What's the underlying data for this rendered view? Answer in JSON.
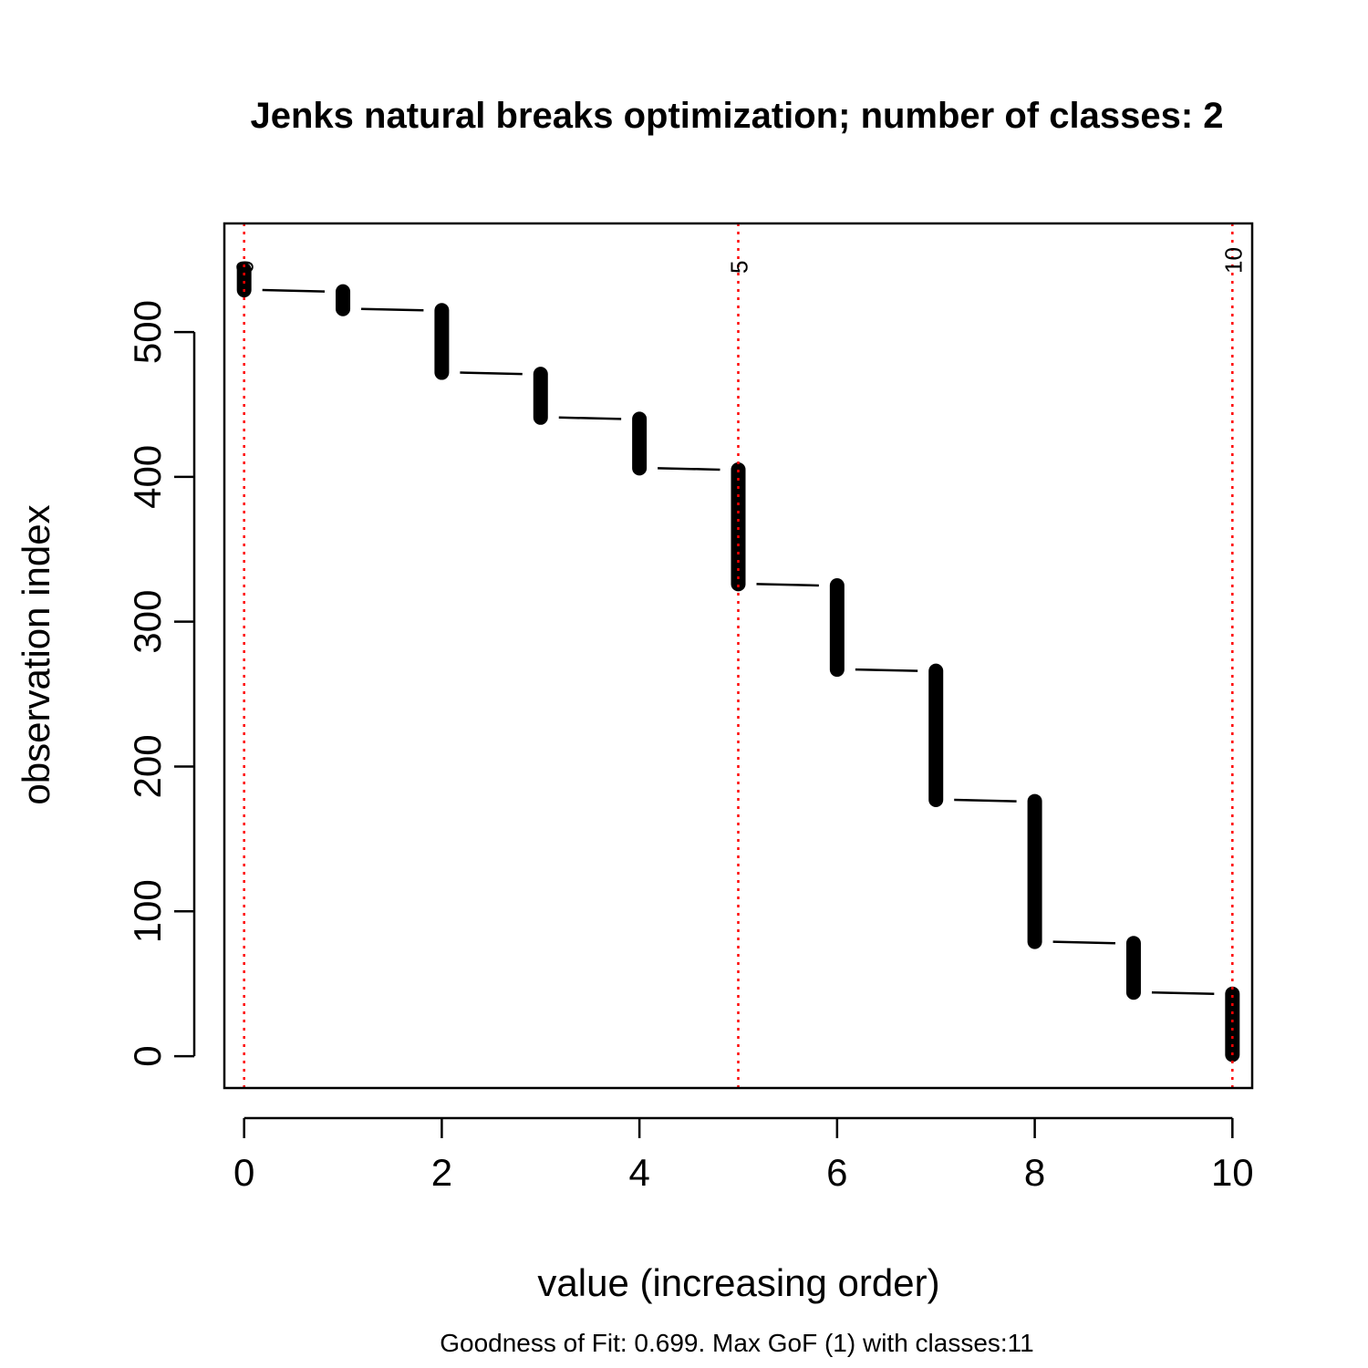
{
  "chart_data": {
    "type": "scatter",
    "title": "Jenks natural breaks optimization; number of classes: 2",
    "xlabel": "value (increasing order)",
    "ylabel": "observation index",
    "subtitle": "Goodness of Fit: 0.699. Max GoF (1) with classes:11",
    "xlim": [
      -0.2,
      10.2
    ],
    "ylim": [
      -22,
      575
    ],
    "x_ticks": [
      0,
      2,
      4,
      6,
      8,
      10
    ],
    "y_ticks": [
      0,
      100,
      200,
      300,
      400,
      500
    ],
    "grid": false,
    "series": [
      {
        "values": [
          {
            "x": 0,
            "y_start": 529,
            "y_end": 543
          },
          {
            "x": 1,
            "y_start": 516,
            "y_end": 528
          },
          {
            "x": 2,
            "y_start": 472,
            "y_end": 515
          },
          {
            "x": 3,
            "y_start": 441,
            "y_end": 471
          },
          {
            "x": 4,
            "y_start": 406,
            "y_end": 440
          },
          {
            "x": 5,
            "y_start": 326,
            "y_end": 405
          },
          {
            "x": 6,
            "y_start": 267,
            "y_end": 325
          },
          {
            "x": 7,
            "y_start": 177,
            "y_end": 266
          },
          {
            "x": 8,
            "y_start": 79,
            "y_end": 176
          },
          {
            "x": 9,
            "y_start": 44,
            "y_end": 78
          },
          {
            "x": 10,
            "y_start": 1,
            "y_end": 43
          }
        ]
      }
    ],
    "breaks": [
      {
        "x": 0,
        "label": "0"
      },
      {
        "x": 5,
        "label": "5"
      },
      {
        "x": 10,
        "label": "10"
      }
    ],
    "colors": {
      "points": "#000000",
      "breaks": "#ff0000"
    }
  }
}
